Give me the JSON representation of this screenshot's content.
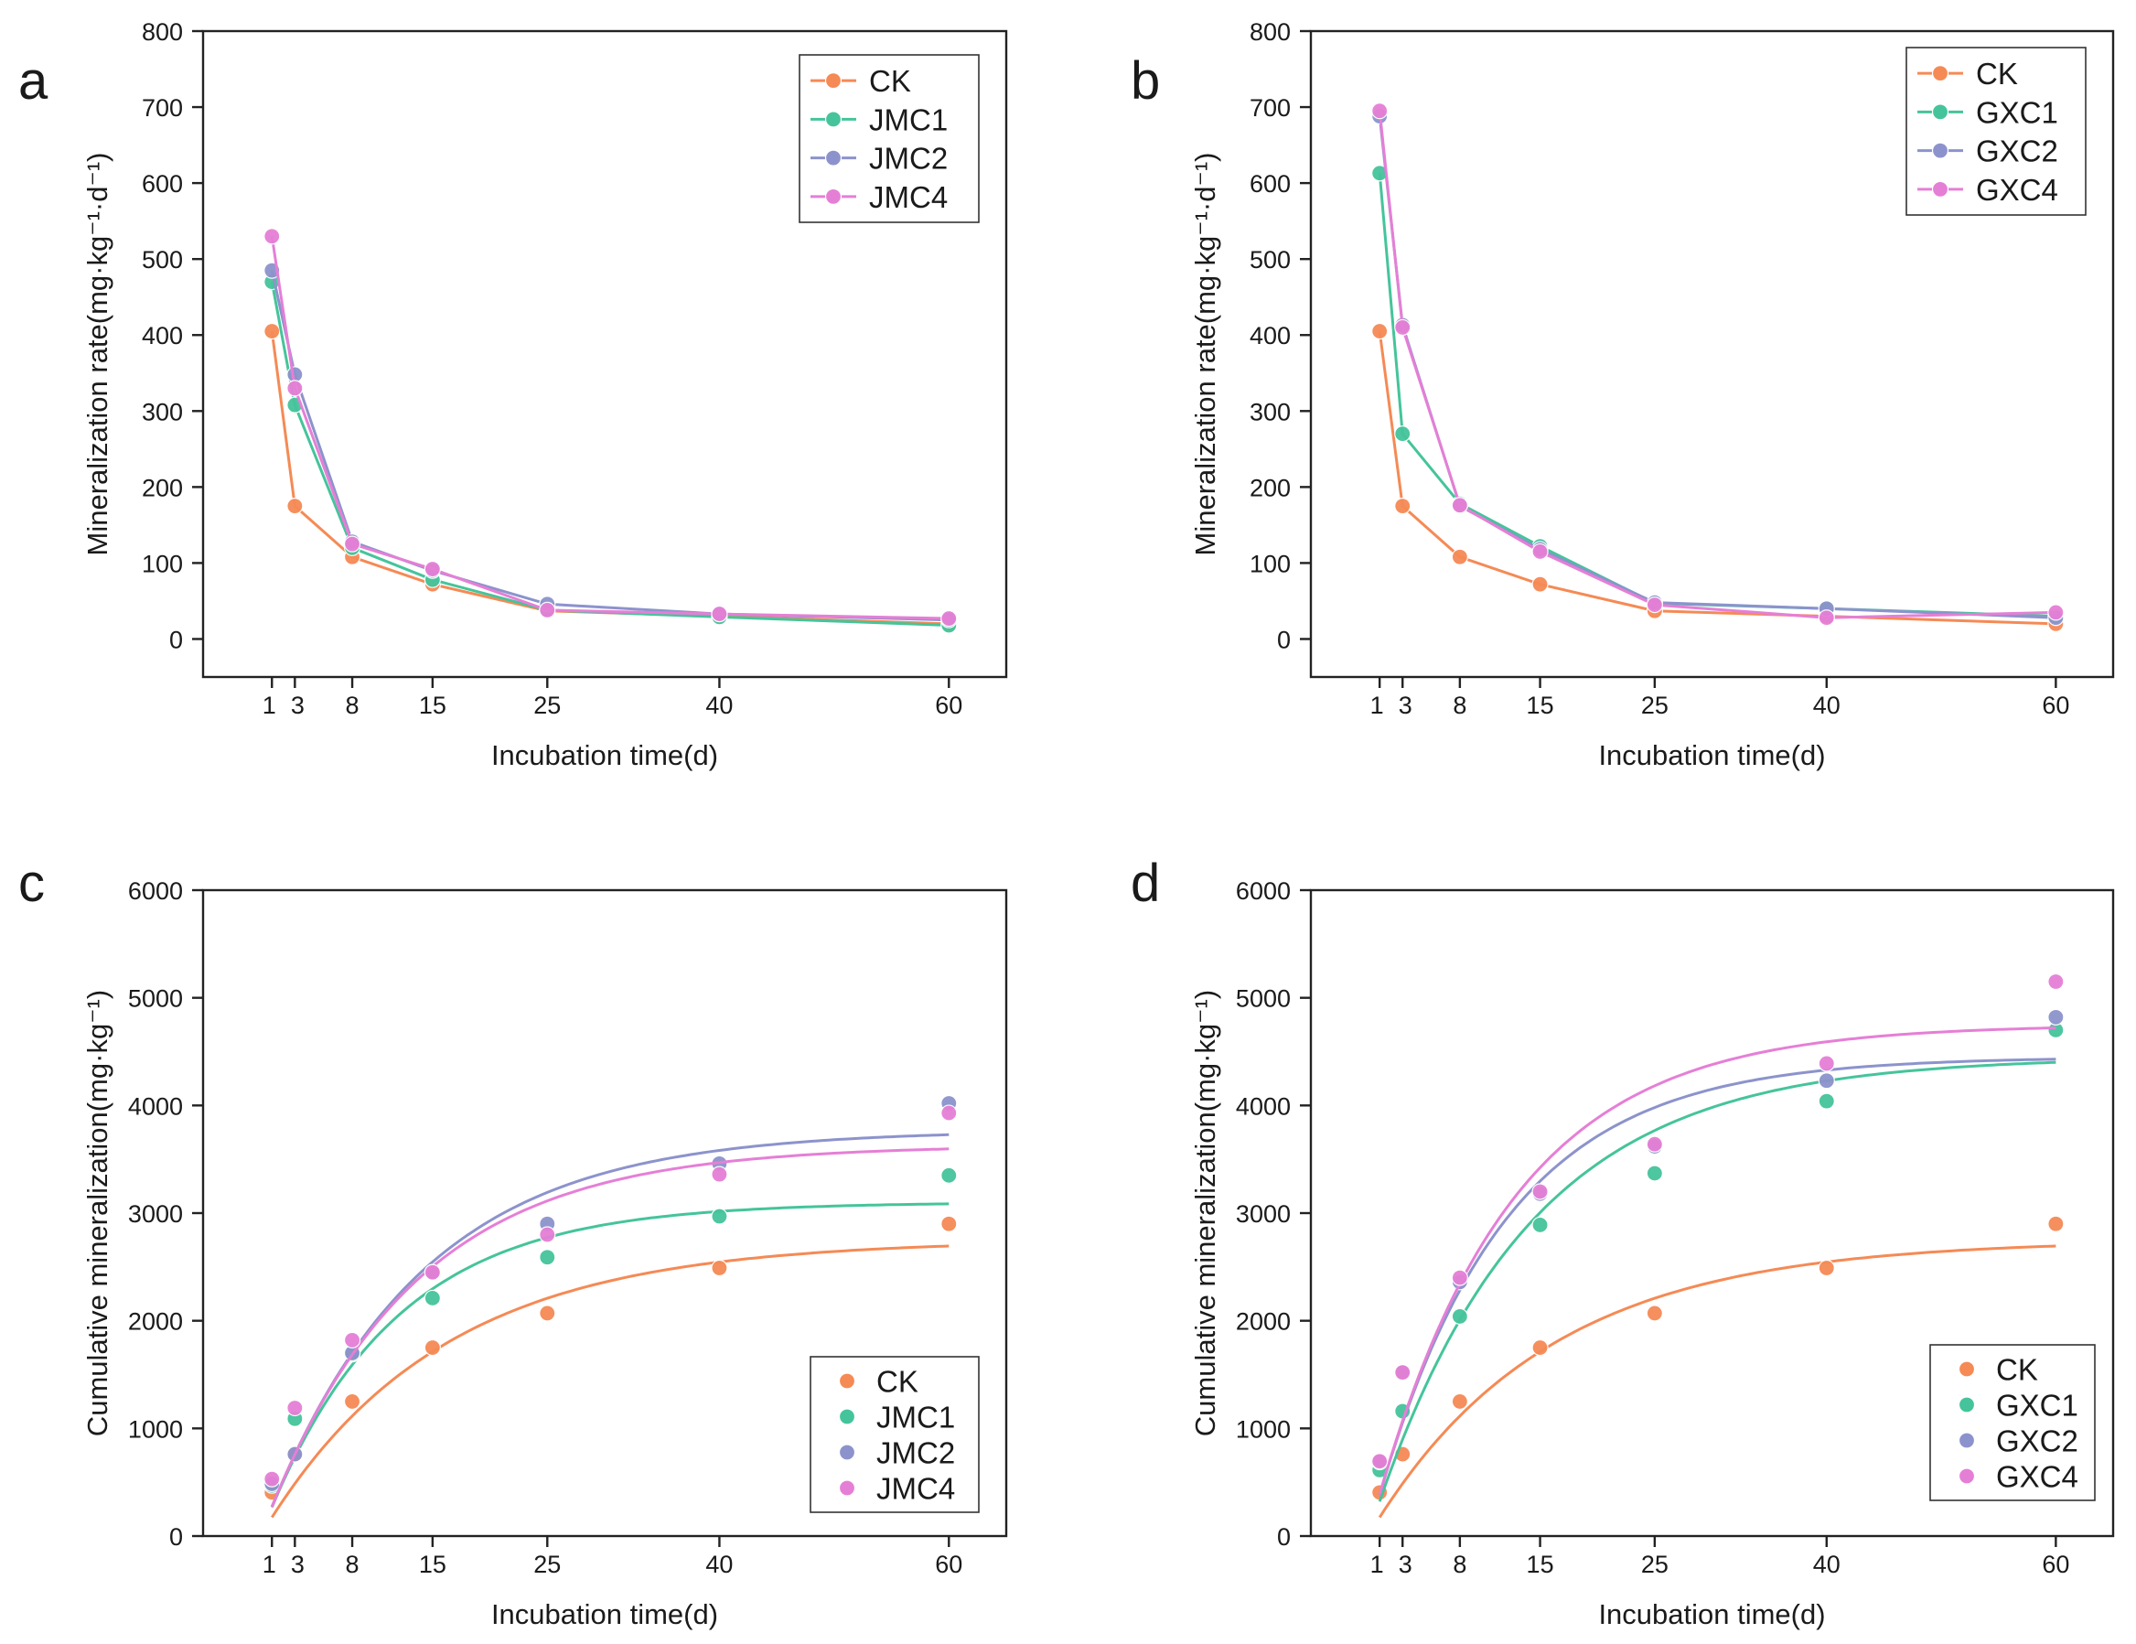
{
  "colors": {
    "CK": "#f58a55",
    "JMC1": "#45c49b",
    "JMC2": "#8c93cc",
    "JMC4": "#e57fd6",
    "GXC1": "#45c49b",
    "GXC2": "#8c93cc",
    "GXC4": "#e57fd6"
  },
  "chart_data": [
    {
      "panel": "a",
      "type": "line",
      "xlabel": "Incubation time(d)",
      "ylabel": "Mineralization rate(mg·kg⁻¹·d⁻¹)",
      "xticks": [
        1,
        3,
        8,
        15,
        25,
        40,
        60
      ],
      "xlim": [
        -5,
        65
      ],
      "ylim": [
        -50,
        800
      ],
      "yticks": [
        0,
        100,
        200,
        300,
        400,
        500,
        600,
        700,
        800
      ],
      "legend_position": "top-right",
      "x": [
        1,
        3,
        8,
        15,
        25,
        40,
        60
      ],
      "series": [
        {
          "name": "CK",
          "values": [
            405,
            175,
            108,
            72,
            37,
            30,
            20
          ]
        },
        {
          "name": "JMC1",
          "values": [
            470,
            308,
            120,
            78,
            38,
            29,
            18
          ]
        },
        {
          "name": "JMC2",
          "values": [
            485,
            348,
            128,
            90,
            46,
            33,
            25
          ]
        },
        {
          "name": "JMC4",
          "values": [
            530,
            330,
            125,
            92,
            38,
            33,
            27
          ]
        }
      ]
    },
    {
      "panel": "b",
      "type": "line",
      "xlabel": "Incubation time(d)",
      "ylabel": "Mineralization rate(mg·kg⁻¹·d⁻¹)",
      "xticks": [
        1,
        3,
        8,
        15,
        25,
        40,
        60
      ],
      "xlim": [
        -5,
        65
      ],
      "ylim": [
        -50,
        800
      ],
      "yticks": [
        0,
        100,
        200,
        300,
        400,
        500,
        600,
        700,
        800
      ],
      "legend_position": "top-right",
      "x": [
        1,
        3,
        8,
        15,
        25,
        40,
        60
      ],
      "series": [
        {
          "name": "CK",
          "values": [
            405,
            175,
            108,
            72,
            37,
            30,
            20
          ]
        },
        {
          "name": "GXC1",
          "values": [
            613,
            270,
            178,
            122,
            47,
            40,
            30
          ]
        },
        {
          "name": "GXC2",
          "values": [
            688,
            413,
            175,
            118,
            48,
            40,
            28
          ]
        },
        {
          "name": "GXC4",
          "values": [
            695,
            410,
            176,
            115,
            45,
            28,
            35
          ]
        }
      ]
    },
    {
      "panel": "c",
      "type": "scatter",
      "xlabel": "Incubation time(d)",
      "ylabel": "Cumulative mineralization(mg·kg⁻¹)",
      "xticks": [
        1,
        3,
        8,
        15,
        25,
        40,
        60
      ],
      "xlim": [
        -5,
        65
      ],
      "ylim": [
        0,
        6000
      ],
      "yticks": [
        0,
        1000,
        2000,
        3000,
        4000,
        5000,
        6000
      ],
      "legend_position": "bottom-right",
      "x": [
        1,
        3,
        8,
        15,
        25,
        40,
        60
      ],
      "series": [
        {
          "name": "CK",
          "values": [
            405,
            760,
            1250,
            1750,
            2070,
            2490,
            2900
          ],
          "fit": {
            "max": 2750,
            "k": 0.065
          }
        },
        {
          "name": "JMC1",
          "values": [
            470,
            1090,
            1690,
            2210,
            2590,
            2970,
            3350
          ],
          "fit": {
            "max": 3100,
            "k": 0.09
          }
        },
        {
          "name": "JMC2",
          "values": [
            485,
            760,
            1700,
            2450,
            2900,
            3460,
            4020
          ],
          "fit": {
            "max": 3770,
            "k": 0.075
          }
        },
        {
          "name": "JMC4",
          "values": [
            530,
            1190,
            1820,
            2450,
            2800,
            3360,
            3930
          ],
          "fit": {
            "max": 3630,
            "k": 0.078
          }
        }
      ]
    },
    {
      "panel": "d",
      "type": "scatter",
      "xlabel": "Incubation time(d)",
      "ylabel": "Cumulative mineralization(mg·kg⁻¹)",
      "xticks": [
        1,
        3,
        8,
        15,
        25,
        40,
        60
      ],
      "xlim": [
        -5,
        65
      ],
      "ylim": [
        0,
        6000
      ],
      "yticks": [
        0,
        1000,
        2000,
        3000,
        4000,
        5000,
        6000
      ],
      "legend_position": "bottom-right",
      "x": [
        1,
        3,
        8,
        15,
        25,
        40,
        60
      ],
      "series": [
        {
          "name": "CK",
          "values": [
            405,
            760,
            1250,
            1750,
            2070,
            2490,
            2900
          ],
          "fit": {
            "max": 2750,
            "k": 0.065
          }
        },
        {
          "name": "GXC1",
          "values": [
            613,
            1160,
            2040,
            2890,
            3370,
            4040,
            4700
          ],
          "fit": {
            "max": 4450,
            "k": 0.075
          }
        },
        {
          "name": "GXC2",
          "values": [
            688,
            1520,
            2360,
            3180,
            3620,
            4230,
            4820
          ],
          "fit": {
            "max": 4450,
            "k": 0.09
          }
        },
        {
          "name": "GXC4",
          "values": [
            695,
            1520,
            2400,
            3200,
            3640,
            4390,
            5150
          ],
          "fit": {
            "max": 4750,
            "k": 0.085
          }
        }
      ]
    }
  ]
}
